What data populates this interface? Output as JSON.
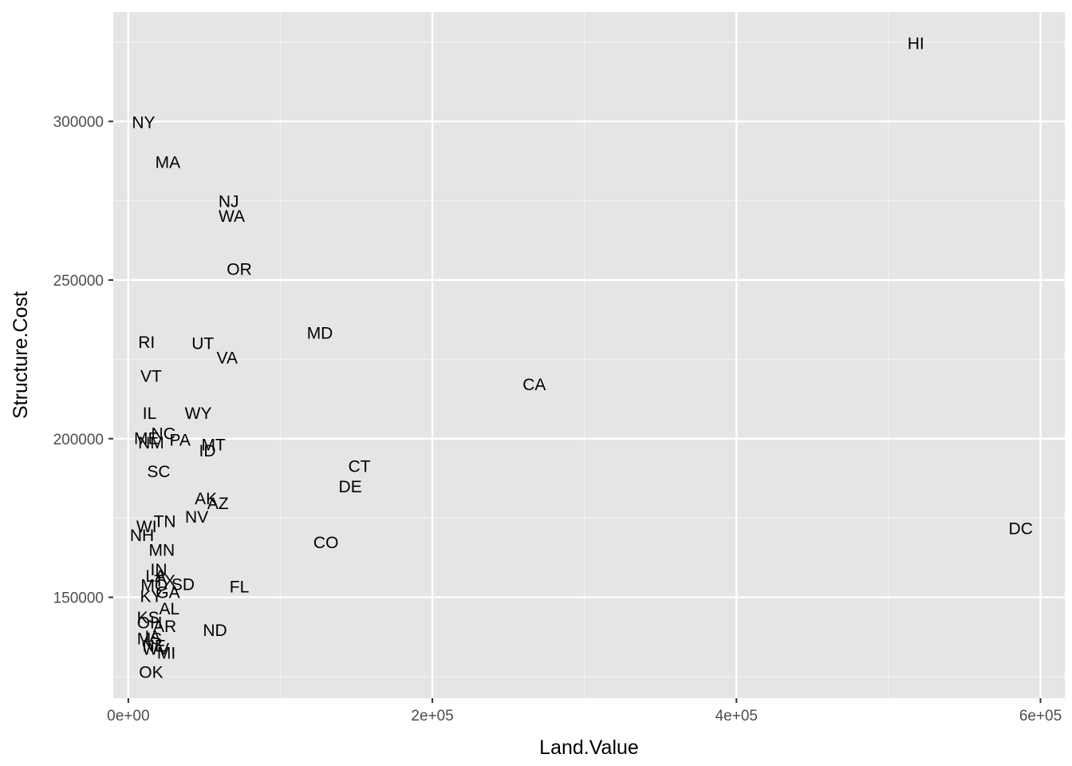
{
  "chart_data": {
    "type": "scatter",
    "subtype": "text-labels",
    "title": "",
    "xlabel": "Land.Value",
    "ylabel": "Structure.Cost",
    "xlim": [
      -9900,
      616000
    ],
    "ylim": [
      118200,
      334500
    ],
    "x_ticks": [
      {
        "value": 0,
        "label": "0e+00"
      },
      {
        "value": 200000,
        "label": "2e+05"
      },
      {
        "value": 400000,
        "label": "4e+05"
      },
      {
        "value": 600000,
        "label": "6e+05"
      }
    ],
    "x_minor_ticks": [
      100000,
      300000,
      500000
    ],
    "y_ticks": [
      {
        "value": 150000,
        "label": "150000"
      },
      {
        "value": 200000,
        "label": "200000"
      },
      {
        "value": 250000,
        "label": "250000"
      },
      {
        "value": 300000,
        "label": "300000"
      }
    ],
    "y_minor_ticks": [
      125000,
      175000,
      225000,
      275000,
      325000
    ],
    "grid": true,
    "points": [
      {
        "label": "HI",
        "x": 518000,
        "y": 324500
      },
      {
        "label": "NY",
        "x": 10000,
        "y": 299500
      },
      {
        "label": "MA",
        "x": 26000,
        "y": 287000
      },
      {
        "label": "NJ",
        "x": 66000,
        "y": 274700
      },
      {
        "label": "WA",
        "x": 68000,
        "y": 270000
      },
      {
        "label": "OR",
        "x": 73000,
        "y": 253300
      },
      {
        "label": "MD",
        "x": 126000,
        "y": 233200
      },
      {
        "label": "RI",
        "x": 12000,
        "y": 230200
      },
      {
        "label": "UT",
        "x": 49000,
        "y": 229900
      },
      {
        "label": "VA",
        "x": 65000,
        "y": 225300
      },
      {
        "label": "CA",
        "x": 267000,
        "y": 216900
      },
      {
        "label": "VT",
        "x": 15000,
        "y": 219500
      },
      {
        "label": "IL",
        "x": 14000,
        "y": 207900
      },
      {
        "label": "WY",
        "x": 46000,
        "y": 207900
      },
      {
        "label": "NC",
        "x": 23000,
        "y": 201400
      },
      {
        "label": "ME",
        "x": 12000,
        "y": 199900
      },
      {
        "label": "PA",
        "x": 34000,
        "y": 199500
      },
      {
        "label": "NM",
        "x": 15000,
        "y": 198500
      },
      {
        "label": "MT",
        "x": 56000,
        "y": 197900
      },
      {
        "label": "ID",
        "x": 52000,
        "y": 196000
      },
      {
        "label": "CT",
        "x": 152000,
        "y": 191100
      },
      {
        "label": "SC",
        "x": 20000,
        "y": 189500
      },
      {
        "label": "DE",
        "x": 146000,
        "y": 184700
      },
      {
        "label": "AK",
        "x": 51000,
        "y": 181000
      },
      {
        "label": "AZ",
        "x": 59000,
        "y": 179400
      },
      {
        "label": "NV",
        "x": 45000,
        "y": 175200
      },
      {
        "label": "TN",
        "x": 24000,
        "y": 173800
      },
      {
        "label": "WI",
        "x": 12000,
        "y": 172200
      },
      {
        "label": "DC",
        "x": 587000,
        "y": 171500
      },
      {
        "label": "NH",
        "x": 9000,
        "y": 169400
      },
      {
        "label": "CO",
        "x": 130000,
        "y": 167100
      },
      {
        "label": "MN",
        "x": 22000,
        "y": 164700
      },
      {
        "label": "IN",
        "x": 20000,
        "y": 158600
      },
      {
        "label": "LA",
        "x": 18000,
        "y": 156500
      },
      {
        "label": "TX",
        "x": 24000,
        "y": 155000
      },
      {
        "label": "SD",
        "x": 36000,
        "y": 153900
      },
      {
        "label": "MO",
        "x": 17000,
        "y": 153700
      },
      {
        "label": "FL",
        "x": 73000,
        "y": 153200
      },
      {
        "label": "GA",
        "x": 26000,
        "y": 151400
      },
      {
        "label": "KY",
        "x": 15000,
        "y": 150200
      },
      {
        "label": "AL",
        "x": 27000,
        "y": 146200
      },
      {
        "label": "KS",
        "x": 13000,
        "y": 143500
      },
      {
        "label": "OH",
        "x": 14000,
        "y": 141800
      },
      {
        "label": "AR",
        "x": 24000,
        "y": 140700
      },
      {
        "label": "ND",
        "x": 57000,
        "y": 139500
      },
      {
        "label": "IA",
        "x": 16000,
        "y": 137500
      },
      {
        "label": "MS",
        "x": 14000,
        "y": 136800
      },
      {
        "label": "NE",
        "x": 17000,
        "y": 134600
      },
      {
        "label": "WV",
        "x": 18000,
        "y": 133600
      },
      {
        "label": "MI",
        "x": 25000,
        "y": 132300
      },
      {
        "label": "OK",
        "x": 15000,
        "y": 126200
      }
    ]
  }
}
